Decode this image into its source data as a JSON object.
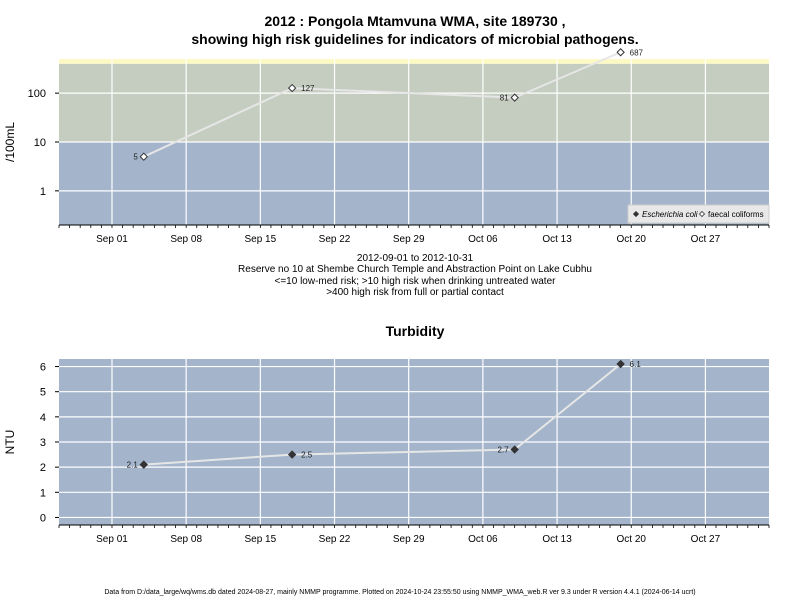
{
  "chart_data": [
    {
      "type": "line",
      "title_line1": "2012 : Pongola Mtamvuna WMA, site 189730 ,",
      "title_line2": "showing high risk guidelines for indicators of microbial pathogens.",
      "ylabel": "/100mL",
      "yscale": "log",
      "ylim": [
        0.2,
        500
      ],
      "yticks": [
        1,
        10,
        100
      ],
      "ytick_labels": [
        "1",
        "10",
        "100"
      ],
      "bands": [
        {
          "from": 0.2,
          "to": 10,
          "color": "#a3b4cb"
        },
        {
          "from": 10,
          "to": 400,
          "color": "#c4cdbf"
        },
        {
          "from": 400,
          "to": 500,
          "color": "#fdf9c5"
        }
      ],
      "xtick_labels": [
        "Sep 01",
        "Sep 08",
        "Sep 15",
        "Sep 22",
        "Sep 29",
        "Oct 06",
        "Oct 13",
        "Oct 20",
        "Oct 27"
      ],
      "legend": [
        {
          "label": "Escherichia coli",
          "marker": "filled-diamond"
        },
        {
          "label": "faecal coliforms",
          "marker": "open-diamond"
        }
      ],
      "legend_position": "bottom-right",
      "series": [
        {
          "name": "faecal coliforms",
          "x": [
            "2012-09-04",
            "2012-09-18",
            "2012-10-09",
            "2012-10-19"
          ],
          "y": [
            5,
            127,
            81,
            687
          ],
          "labels": [
            "5",
            "127",
            "81",
            "687"
          ],
          "label_side": [
            "left",
            "right",
            "left",
            "right"
          ]
        }
      ],
      "caption": [
        "2012-09-01 to 2012-10-31",
        "Reserve no 10 at Shembe Church Temple and Abstraction Point on Lake Cubhu",
        "<=10 low-med risk; >10 high risk when drinking untreated water",
        ">400 high risk from full or partial contact"
      ]
    },
    {
      "type": "line",
      "title": "Turbidity",
      "ylabel": "NTU",
      "ylim": [
        -0.3,
        6.3
      ],
      "yticks": [
        0,
        1,
        2,
        3,
        4,
        5,
        6
      ],
      "ytick_labels": [
        "0",
        "1",
        "2",
        "3",
        "4",
        "5",
        "6"
      ],
      "background": "#a3b4cb",
      "xtick_labels": [
        "Sep 01",
        "Sep 08",
        "Sep 15",
        "Sep 22",
        "Sep 29",
        "Oct 06",
        "Oct 13",
        "Oct 20",
        "Oct 27"
      ],
      "series": [
        {
          "x": [
            "2012-09-04",
            "2012-09-18",
            "2012-10-09",
            "2012-10-19"
          ],
          "y": [
            2.1,
            2.5,
            2.7,
            6.1
          ],
          "labels": [
            "2.1",
            "2.5",
            "2.7",
            "6.1"
          ],
          "label_side": [
            "left",
            "right",
            "left",
            "right"
          ]
        }
      ]
    }
  ],
  "footer": "Data from D:/data_large/wq/wms.db dated 2024-08-27, mainly NMMP programme. Plotted on 2024-10-24 23:55:50 using NMMP_WMA_web.R ver 9.3 under R version 4.4.1 (2024-06-14 ucrt)"
}
